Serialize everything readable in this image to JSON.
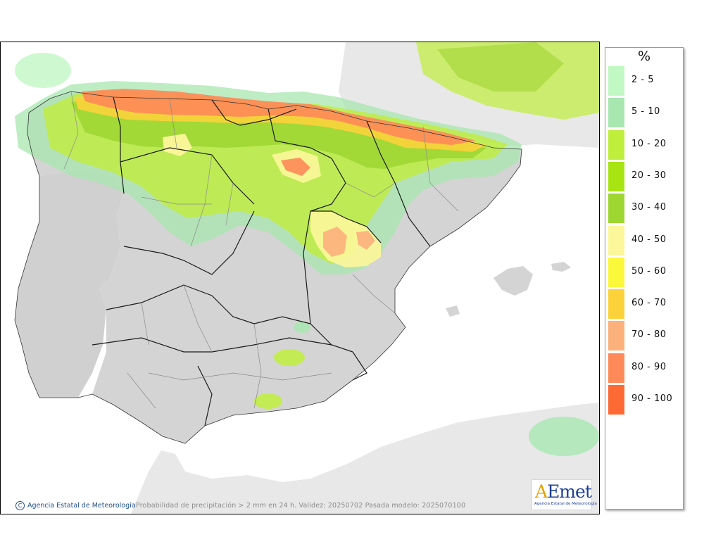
{
  "caption": "Probabilidad de precipitación > 2 mm en 24 h. Validez: 20250702 Pasada modelo: 2025070100",
  "credit": "Agencia Estatal de Meteorología",
  "logo": {
    "word": "AEmet",
    "subtitle": "Agencia Estatal de Meteorología"
  },
  "legend": {
    "unit": "%",
    "items": [
      {
        "label": "2 - 5",
        "color": "#c2f8c4"
      },
      {
        "label": "5 - 10",
        "color": "#a8e7b0"
      },
      {
        "label": "10 - 20",
        "color": "#c0ee3c"
      },
      {
        "label": "20 - 30",
        "color": "#a8e412"
      },
      {
        "label": "30 - 40",
        "color": "#9ed632"
      },
      {
        "label": "40 - 50",
        "color": "#fdf79b"
      },
      {
        "label": "50 - 60",
        "color": "#fbf73a"
      },
      {
        "label": "60 - 70",
        "color": "#fbd23a"
      },
      {
        "label": "70 - 80",
        "color": "#fcb07b"
      },
      {
        "label": "80 - 90",
        "color": "#fd8a58"
      },
      {
        "label": "90 - 100",
        "color": "#fd6a34"
      }
    ]
  },
  "colors": {
    "sea": "#ffffff",
    "land": "#d4d4d4",
    "foreign_land": "#e8e8e8"
  }
}
